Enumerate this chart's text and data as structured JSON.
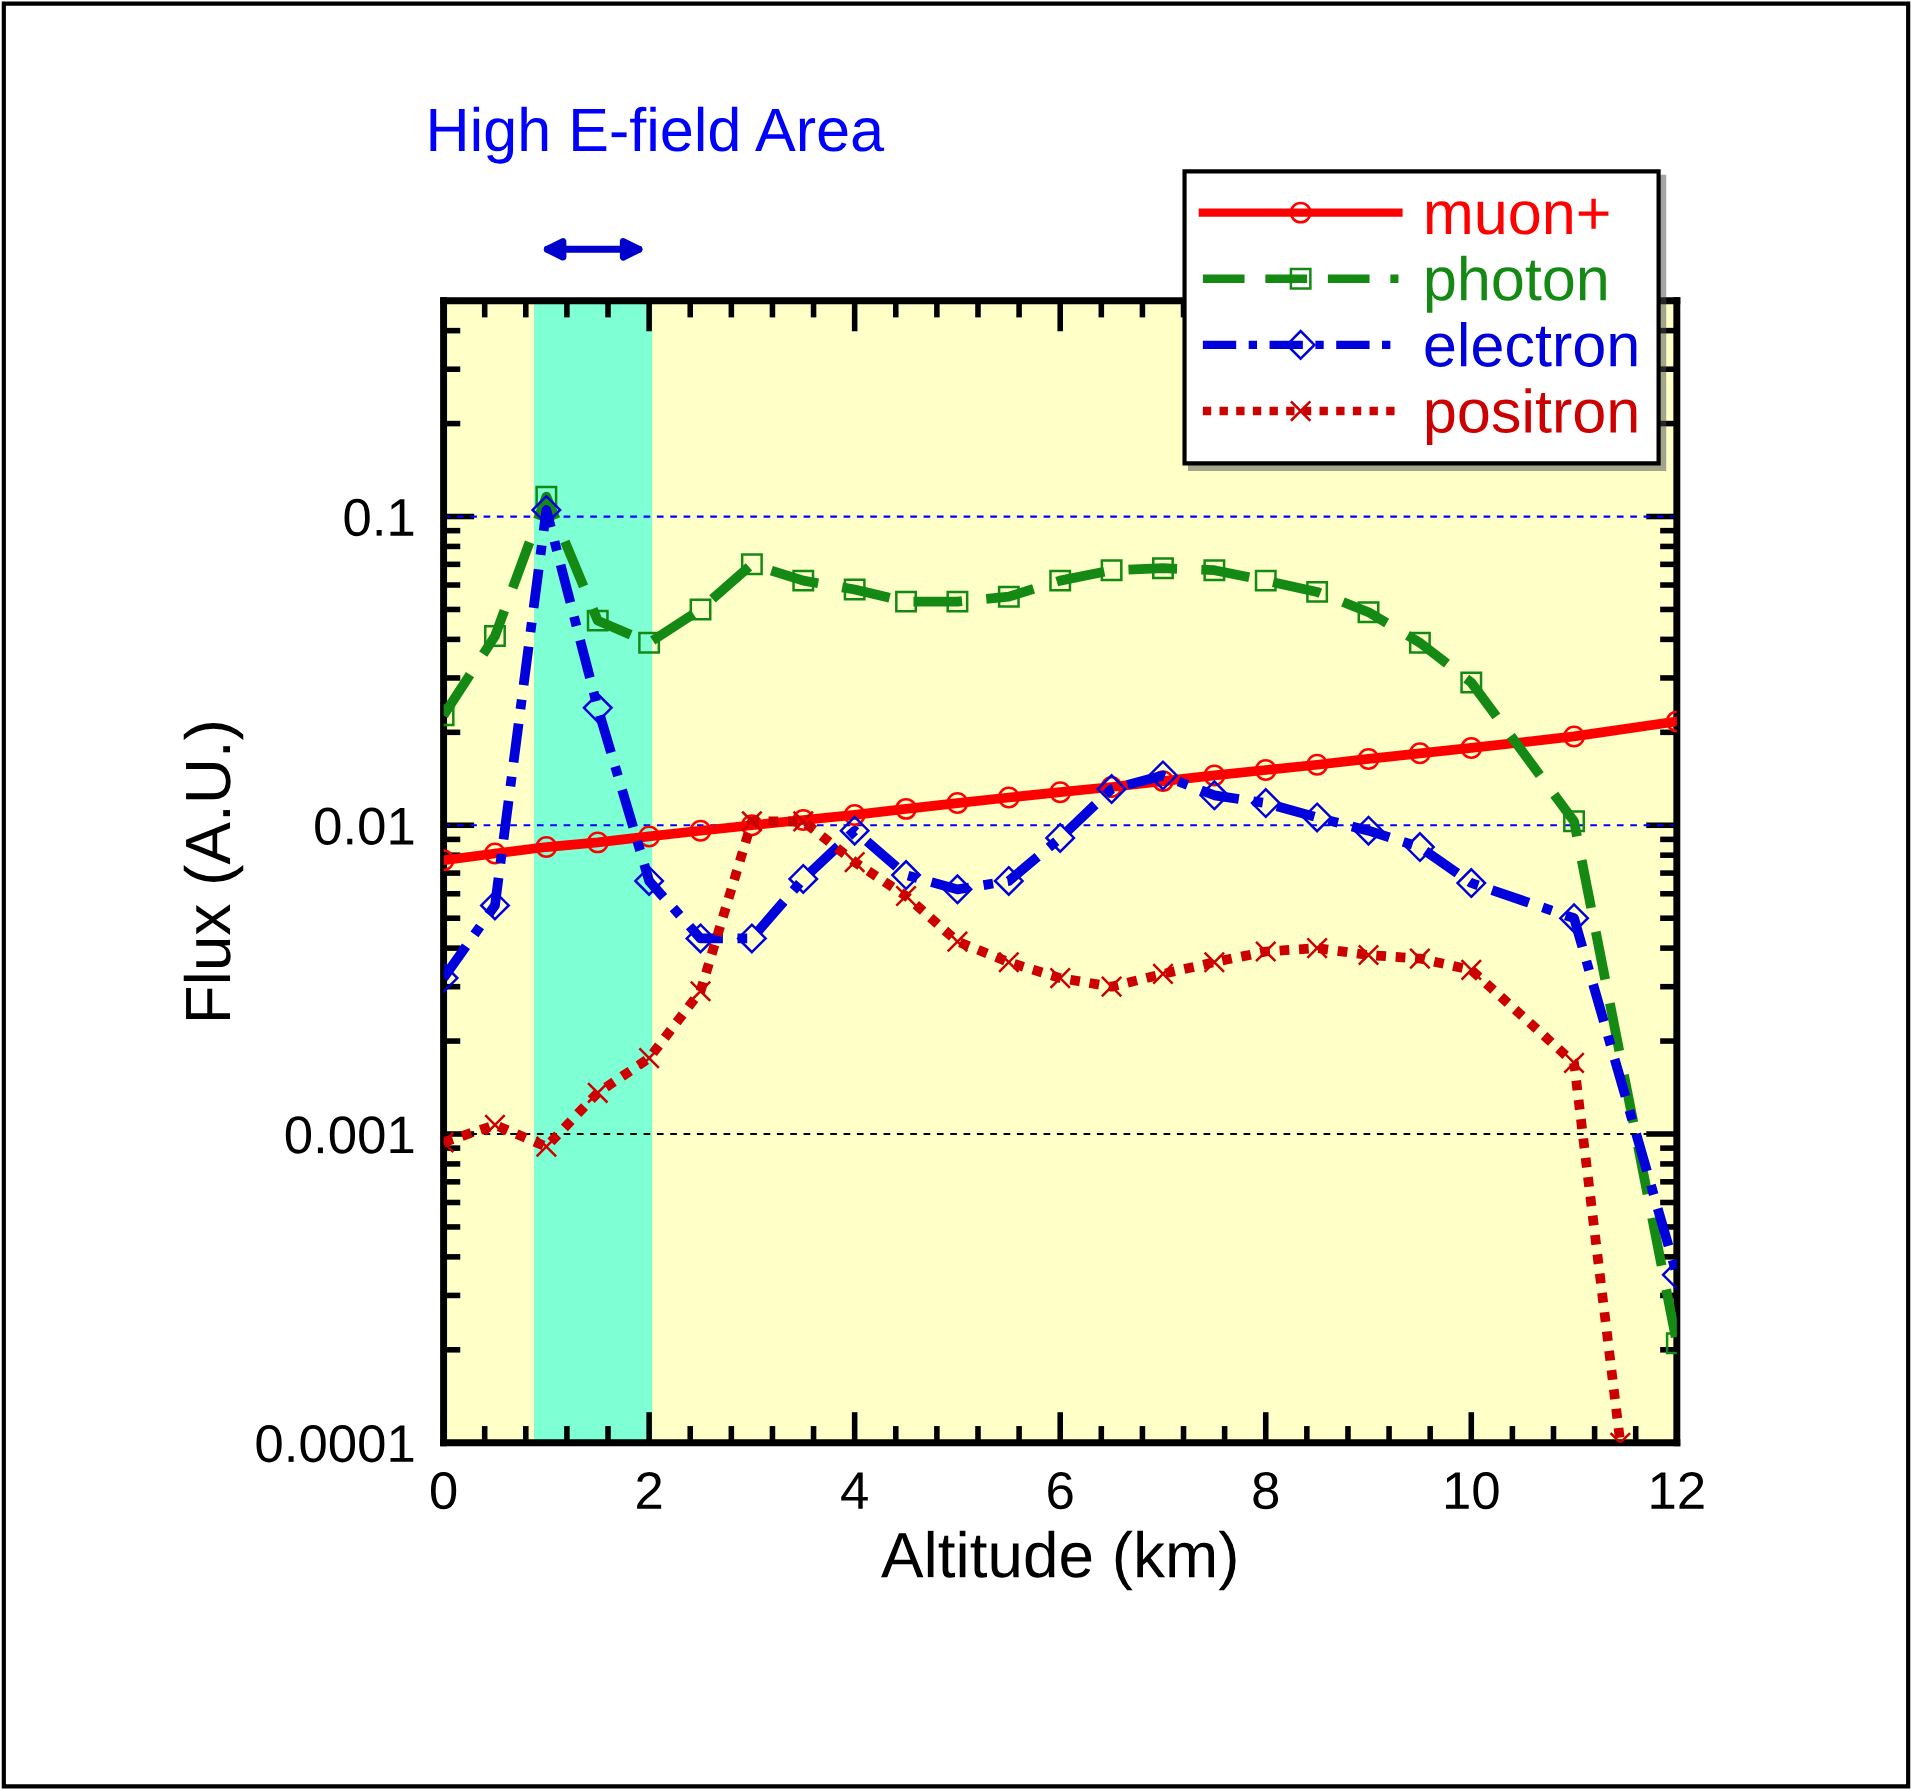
{
  "chart_data": {
    "type": "line",
    "xlabel": "Altitude (km)",
    "ylabel": "Flux (A.U.)",
    "log": "y",
    "xlim": [
      0,
      12
    ],
    "xticks": [
      0,
      2,
      4,
      6,
      8,
      10,
      12
    ],
    "ylim": [
      0.0001,
      0.5
    ],
    "yticks": [
      0.0001,
      0.001,
      0.01,
      0.1
    ],
    "legend": "top right",
    "grid": false,
    "x": [
      0,
      0.5,
      1,
      1.5,
      2,
      2.5,
      3,
      3.5,
      4,
      4.5,
      5,
      5.5,
      6,
      6.5,
      7,
      7.5,
      8,
      8.5,
      9,
      9.5,
      10,
      11,
      12
    ],
    "series": [
      {
        "name": "muon+",
        "color": "#ff0000",
        "line_style": "solid",
        "marker": "circle",
        "values": [
          0.0077,
          0.0081,
          0.0085,
          0.0088,
          0.0092,
          0.0096,
          0.01,
          0.0104,
          0.0108,
          0.0113,
          0.0118,
          0.0123,
          0.0128,
          0.0133,
          0.0139,
          0.0145,
          0.0151,
          0.0157,
          0.0164,
          0.0171,
          0.0178,
          0.0194,
          0.0217
        ]
      },
      {
        "name": "photon",
        "color": "#148a14",
        "line_style": "dashed",
        "marker": "square",
        "values": [
          0.0227,
          0.041,
          0.116,
          0.046,
          0.039,
          0.05,
          0.07,
          0.062,
          0.058,
          0.053,
          0.053,
          0.055,
          0.062,
          0.067,
          0.068,
          0.067,
          0.062,
          0.057,
          0.049,
          0.039,
          0.029,
          0.0103,
          0.00021
        ]
      },
      {
        "name": "electron",
        "color": "#0000dd",
        "line_style": "dashdot",
        "marker": "diamond",
        "values": [
          0.0032,
          0.0055,
          0.105,
          0.024,
          0.0066,
          0.0043,
          0.0043,
          0.0067,
          0.0096,
          0.0069,
          0.0062,
          0.0066,
          0.0091,
          0.0131,
          0.0145,
          0.0125,
          0.0118,
          0.0106,
          0.0096,
          0.0085,
          0.0065,
          0.005,
          0.00035
        ]
      },
      {
        "name": "positron",
        "color": "#cc0000",
        "line_style": "dotted",
        "marker": "cross",
        "x": [
          0,
          0.5,
          1,
          1.5,
          2,
          2.5,
          3,
          3.5,
          4,
          4.5,
          5,
          5.5,
          6,
          6.5,
          7,
          7.5,
          8,
          8.5,
          9,
          9.5,
          10,
          11,
          11.45
        ],
        "values": [
          0.00094,
          0.00107,
          0.00091,
          0.00136,
          0.00176,
          0.0029,
          0.0103,
          0.0103,
          0.0076,
          0.0059,
          0.0042,
          0.0036,
          0.0032,
          0.003,
          0.0033,
          0.0036,
          0.0039,
          0.004,
          0.0038,
          0.0037,
          0.0034,
          0.0017,
          0.0001
        ]
      }
    ],
    "ref_lines": [
      {
        "axis": "y",
        "value": 0.1,
        "color": "#0000ff",
        "line_style": "dashed"
      },
      {
        "axis": "y",
        "value": 0.01,
        "color": "#0000ff",
        "line_style": "dashed"
      },
      {
        "axis": "y",
        "value": 0.001,
        "color": "#000000",
        "line_style": "dashed"
      }
    ],
    "bands": [
      {
        "axis": "x",
        "from": 0.88,
        "to": 2.03,
        "label": "High E-field Area",
        "color": "#7fffd4"
      }
    ]
  }
}
